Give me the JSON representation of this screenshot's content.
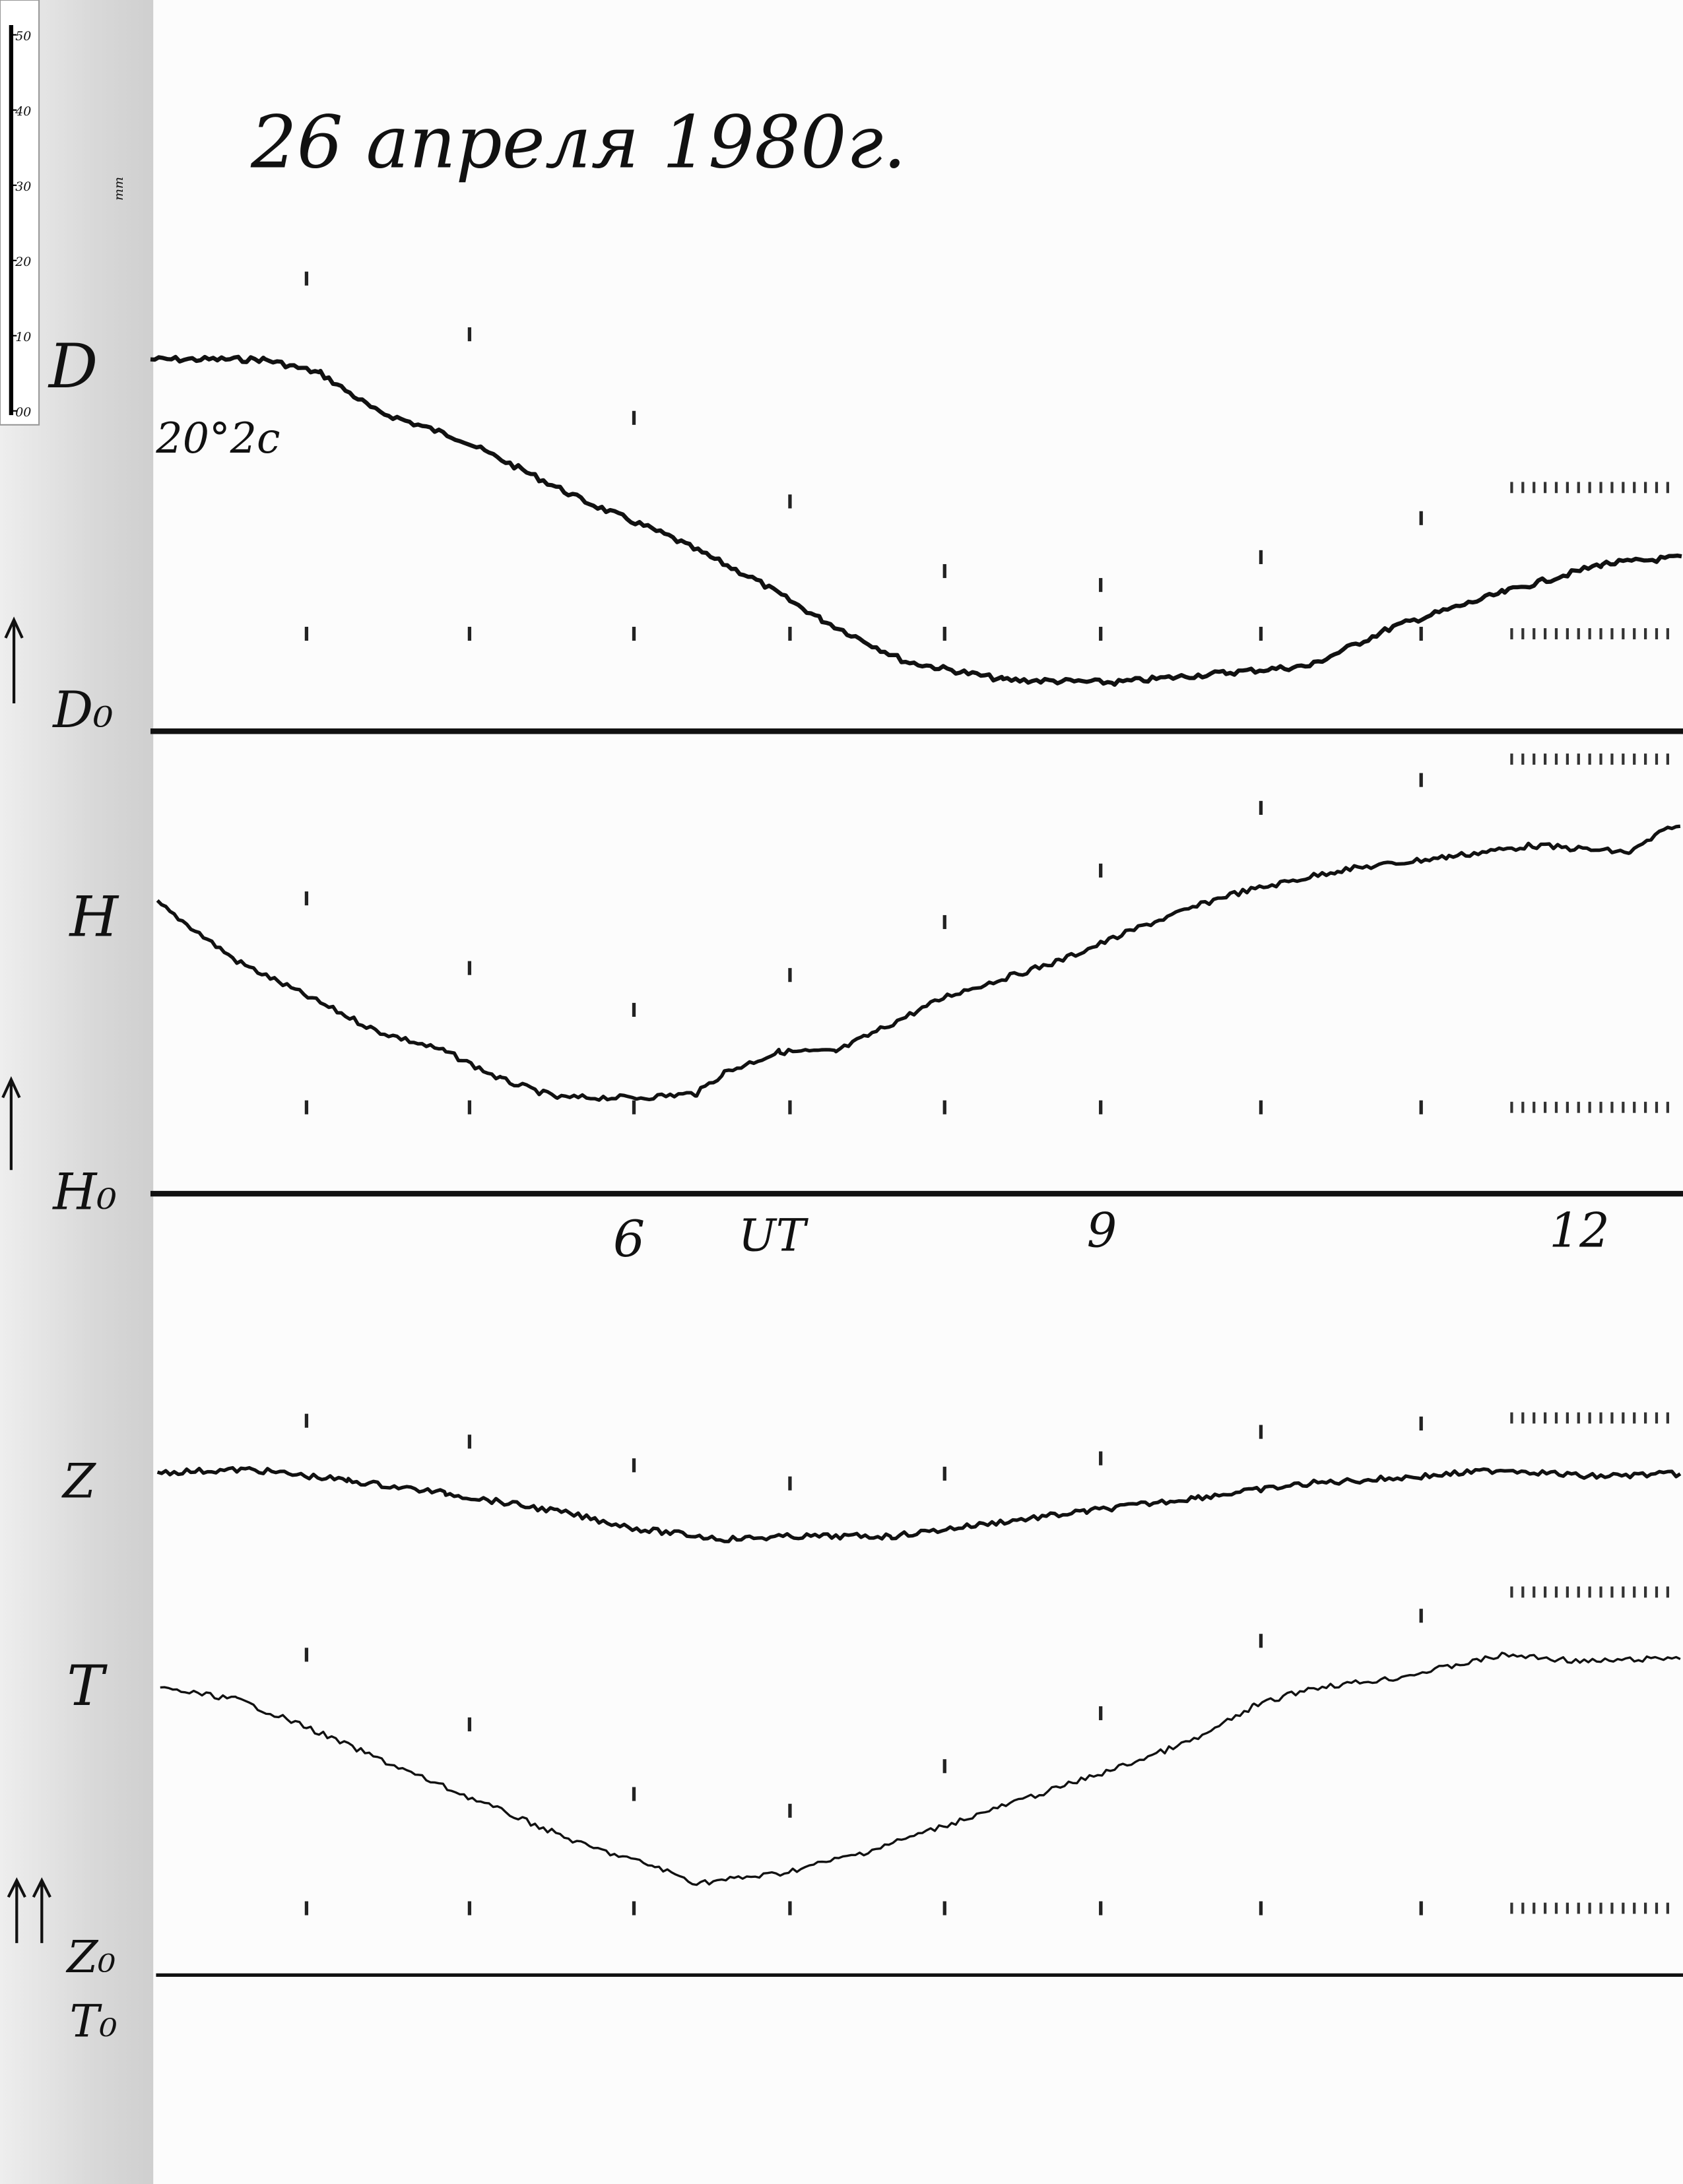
{
  "header": {
    "title": "26 апреля 1980г."
  },
  "ruler": {
    "ticks": [
      "50",
      "40",
      "30",
      "20",
      "10",
      "00"
    ],
    "unit": "mm"
  },
  "traces": [
    {
      "label": "D",
      "baseline_label": "D₀",
      "scale_note": "20°2с"
    },
    {
      "label": "H",
      "baseline_label": "H₀"
    },
    {
      "label": "Z",
      "baseline_label": "Z₀"
    },
    {
      "label": "T",
      "baseline_label": "T₀"
    }
  ],
  "time_axis": {
    "labels": [
      "6",
      "UT",
      "9",
      "12"
    ]
  }
}
